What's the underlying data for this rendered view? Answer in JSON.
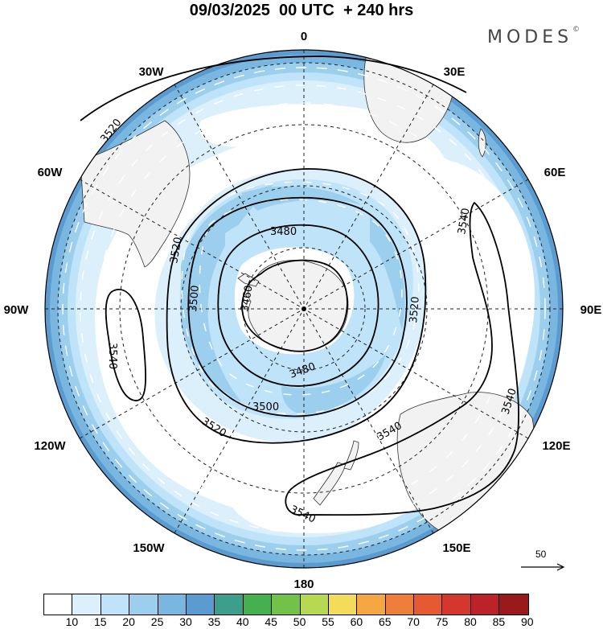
{
  "title": "09/03/2025  00 UTC  + 240 hrs",
  "brand": "MODES",
  "brand_mark": "©",
  "longitude_labels": {
    "lon_0": "0",
    "lon_30e": "30E",
    "lon_60e": "60E",
    "lon_90e": "90E",
    "lon_120e": "120E",
    "lon_150e": "150E",
    "lon_180": "180",
    "lon_150w": "150W",
    "lon_120w": "120W",
    "lon_90w": "90W",
    "lon_60w": "60W",
    "lon_30w": "30W"
  },
  "contour_labels": {
    "c1": "3520",
    "c2": "3540",
    "c3": "3480",
    "c4": "3520",
    "c5": "3500",
    "c6": "3460",
    "c7": "3540",
    "c8": "3520",
    "c9": "3480",
    "c10": "3500",
    "c11": "3520",
    "c12": "3540",
    "c13": "3540",
    "c14": "3540"
  },
  "vector_reference": {
    "label": "50"
  },
  "colorbar": {
    "colors": [
      "#ffffff",
      "#dcf0fc",
      "#bfe3f8",
      "#9ccfee",
      "#79b6e0",
      "#5b9bcf",
      "#3e9e8c",
      "#44b050",
      "#72c24a",
      "#b6d852",
      "#f3dc5a",
      "#f5a744",
      "#ef7e3a",
      "#e55a32",
      "#d4372d",
      "#bc2328",
      "#9a1a1c"
    ],
    "labels": [
      "10",
      "15",
      "20",
      "25",
      "30",
      "35",
      "40",
      "45",
      "50",
      "55",
      "60",
      "65",
      "70",
      "75",
      "80",
      "85",
      "90"
    ]
  },
  "colors": {
    "land": "#f2f2f2",
    "ocean": "#ffffff",
    "contour": "#000000",
    "vector": "#ffffff"
  }
}
